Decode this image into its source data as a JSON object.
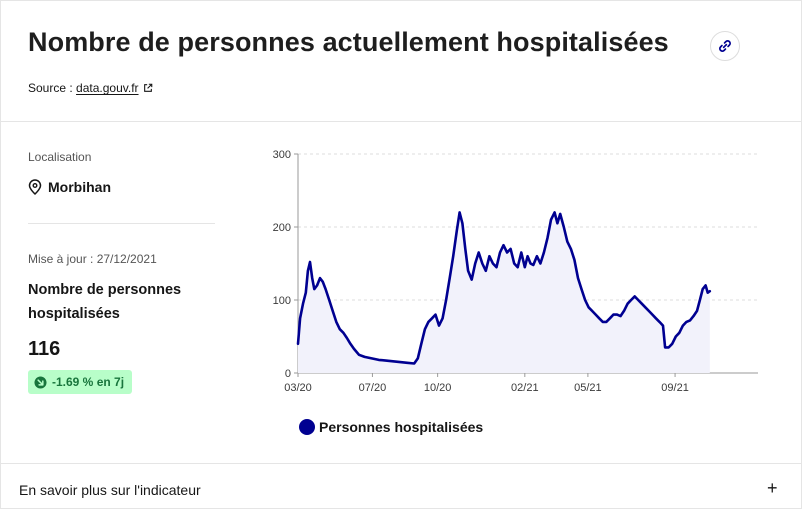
{
  "header": {
    "title": "Nombre de personnes actuellement hospitalisées",
    "source_label": "Source :",
    "source_link": "data.gouv.fr"
  },
  "left": {
    "location_label": "Localisation",
    "location_value": "Morbihan",
    "update": "Mise à jour : 27/12/2021",
    "indicator_name": "Nombre de personnes hospitalisées",
    "value": "116",
    "evolution": "-1.69 % en 7j"
  },
  "footer": {
    "label": "En savoir plus sur l'indicateur",
    "expand": "+"
  },
  "colors": {
    "series": "#000091",
    "area": "#f2f2fb",
    "badge_bg": "#b8fec9",
    "badge_text": "#18753c"
  },
  "chart_data": {
    "type": "area",
    "title": "",
    "xlabel": "",
    "ylabel": "",
    "ylim": [
      0,
      300
    ],
    "yticks": [
      0,
      100,
      200,
      300
    ],
    "x_range": [
      "2020-03-18",
      "2021-12-27"
    ],
    "xticks": [
      {
        "date": "2020-03-01",
        "label": "03/20"
      },
      {
        "date": "2020-07-01",
        "label": "07/20"
      },
      {
        "date": "2020-10-01",
        "label": "10/20"
      },
      {
        "date": "2021-02-01",
        "label": "02/21"
      },
      {
        "date": "2021-05-01",
        "label": "05/21"
      },
      {
        "date": "2021-09-01",
        "label": "09/21"
      }
    ],
    "grid": true,
    "legend_position": "bottom",
    "series": [
      {
        "name": "Personnes hospitalisées",
        "points": [
          [
            "2020-03-18",
            40
          ],
          [
            "2020-03-21",
            75
          ],
          [
            "2020-03-25",
            95
          ],
          [
            "2020-03-29",
            110
          ],
          [
            "2020-04-01",
            140
          ],
          [
            "2020-04-04",
            152
          ],
          [
            "2020-04-07",
            130
          ],
          [
            "2020-04-10",
            115
          ],
          [
            "2020-04-14",
            120
          ],
          [
            "2020-04-18",
            130
          ],
          [
            "2020-04-22",
            125
          ],
          [
            "2020-04-26",
            115
          ],
          [
            "2020-05-01",
            100
          ],
          [
            "2020-05-06",
            85
          ],
          [
            "2020-05-11",
            70
          ],
          [
            "2020-05-16",
            60
          ],
          [
            "2020-05-21",
            55
          ],
          [
            "2020-05-26",
            48
          ],
          [
            "2020-05-31",
            40
          ],
          [
            "2020-06-05",
            33
          ],
          [
            "2020-06-12",
            25
          ],
          [
            "2020-06-20",
            22
          ],
          [
            "2020-06-30",
            20
          ],
          [
            "2020-07-10",
            18
          ],
          [
            "2020-07-20",
            17
          ],
          [
            "2020-07-30",
            16
          ],
          [
            "2020-08-09",
            15
          ],
          [
            "2020-08-19",
            14
          ],
          [
            "2020-08-29",
            13
          ],
          [
            "2020-09-03",
            20
          ],
          [
            "2020-09-08",
            40
          ],
          [
            "2020-09-13",
            60
          ],
          [
            "2020-09-18",
            70
          ],
          [
            "2020-09-23",
            75
          ],
          [
            "2020-09-28",
            80
          ],
          [
            "2020-10-03",
            65
          ],
          [
            "2020-10-08",
            75
          ],
          [
            "2020-10-13",
            100
          ],
          [
            "2020-10-18",
            130
          ],
          [
            "2020-10-23",
            160
          ],
          [
            "2020-10-28",
            195
          ],
          [
            "2020-11-01",
            220
          ],
          [
            "2020-11-05",
            205
          ],
          [
            "2020-11-09",
            170
          ],
          [
            "2020-11-13",
            140
          ],
          [
            "2020-11-18",
            128
          ],
          [
            "2020-11-23",
            150
          ],
          [
            "2020-11-28",
            165
          ],
          [
            "2020-12-03",
            150
          ],
          [
            "2020-12-08",
            140
          ],
          [
            "2020-12-13",
            160
          ],
          [
            "2020-12-18",
            150
          ],
          [
            "2020-12-23",
            145
          ],
          [
            "2020-12-28",
            165
          ],
          [
            "2021-01-02",
            175
          ],
          [
            "2021-01-07",
            165
          ],
          [
            "2021-01-12",
            170
          ],
          [
            "2021-01-17",
            150
          ],
          [
            "2021-01-22",
            145
          ],
          [
            "2021-01-27",
            165
          ],
          [
            "2021-02-01",
            145
          ],
          [
            "2021-02-05",
            160
          ],
          [
            "2021-02-09",
            150
          ],
          [
            "2021-02-13",
            148
          ],
          [
            "2021-02-18",
            160
          ],
          [
            "2021-02-23",
            150
          ],
          [
            "2021-02-28",
            165
          ],
          [
            "2021-03-05",
            185
          ],
          [
            "2021-03-10",
            210
          ],
          [
            "2021-03-15",
            220
          ],
          [
            "2021-03-19",
            205
          ],
          [
            "2021-03-23",
            218
          ],
          [
            "2021-03-28",
            200
          ],
          [
            "2021-04-02",
            180
          ],
          [
            "2021-04-07",
            170
          ],
          [
            "2021-04-12",
            155
          ],
          [
            "2021-04-17",
            130
          ],
          [
            "2021-04-22",
            115
          ],
          [
            "2021-04-27",
            100
          ],
          [
            "2021-05-02",
            90
          ],
          [
            "2021-05-07",
            85
          ],
          [
            "2021-05-12",
            80
          ],
          [
            "2021-05-17",
            75
          ],
          [
            "2021-05-22",
            70
          ],
          [
            "2021-05-27",
            70
          ],
          [
            "2021-06-01",
            75
          ],
          [
            "2021-06-06",
            80
          ],
          [
            "2021-06-11",
            80
          ],
          [
            "2021-06-16",
            78
          ],
          [
            "2021-06-21",
            85
          ],
          [
            "2021-06-26",
            95
          ],
          [
            "2021-07-01",
            100
          ],
          [
            "2021-07-06",
            105
          ],
          [
            "2021-07-11",
            100
          ],
          [
            "2021-07-16",
            95
          ],
          [
            "2021-07-21",
            90
          ],
          [
            "2021-07-26",
            85
          ],
          [
            "2021-07-31",
            80
          ],
          [
            "2021-08-05",
            75
          ],
          [
            "2021-08-10",
            70
          ],
          [
            "2021-08-15",
            65
          ],
          [
            "2021-08-18",
            35
          ],
          [
            "2021-08-23",
            35
          ],
          [
            "2021-08-28",
            40
          ],
          [
            "2021-09-02",
            50
          ],
          [
            "2021-09-07",
            55
          ],
          [
            "2021-09-12",
            65
          ],
          [
            "2021-09-17",
            70
          ],
          [
            "2021-09-22",
            72
          ],
          [
            "2021-09-27",
            78
          ],
          [
            "2021-10-02",
            85
          ],
          [
            "2021-10-06",
            100
          ],
          [
            "2021-10-10",
            115
          ],
          [
            "2021-10-14",
            120
          ],
          [
            "2021-10-17",
            110
          ],
          [
            "2021-10-20",
            112
          ]
        ]
      }
    ]
  }
}
